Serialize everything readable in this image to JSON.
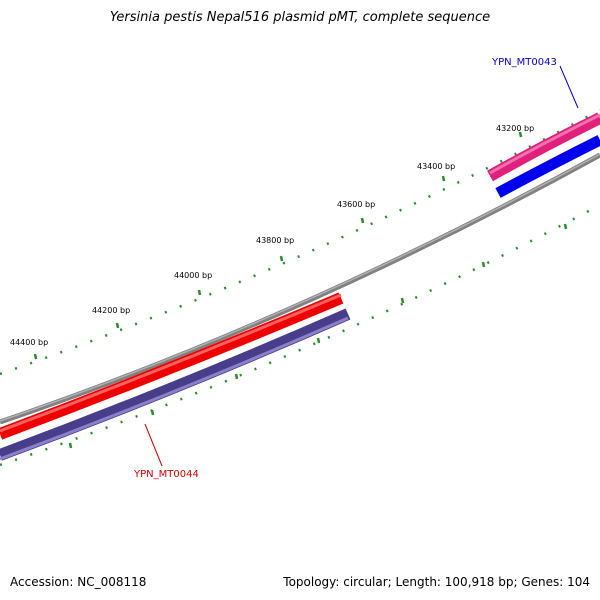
{
  "title": "Yersinia pestis Nepal516 plasmid pMT, complete sequence",
  "footer": {
    "accession": "Accession: NC_008118",
    "summary": "Topology: circular; Length: 100,918 bp; Genes: 104"
  },
  "ticks": [
    "43200 bp",
    "43400 bp",
    "43600 bp",
    "43800 bp",
    "44000 bp",
    "44200 bp",
    "44400 bp"
  ],
  "genes": [
    {
      "name": "YPN_MT0043",
      "color": "#0000cc"
    },
    {
      "name": "YPN_MT0044",
      "color": "#cc0000"
    }
  ],
  "colors": {
    "backbone": "#808080",
    "tick": "#2e8b2e",
    "magenta": "#e0207a",
    "blue": "#0000ee",
    "red": "#ee0000",
    "slate": "#483d8b"
  }
}
